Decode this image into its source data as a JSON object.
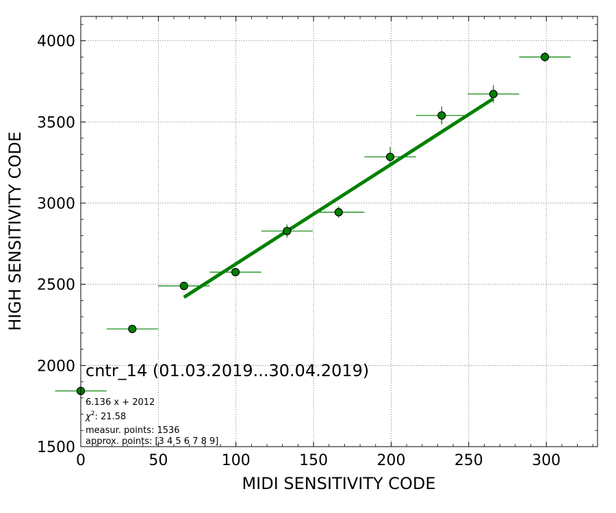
{
  "chart_data": {
    "type": "scatter",
    "title": "",
    "xlabel": "MIDI SENSITIVITY CODE",
    "ylabel": "HIGH SENSITIVITY CODE",
    "xlim": [
      0,
      333
    ],
    "ylim": [
      1500,
      4150
    ],
    "xticks": [
      0,
      50,
      100,
      150,
      200,
      250,
      300
    ],
    "yticks": [
      1500,
      2000,
      2500,
      3000,
      3500,
      4000
    ],
    "grid": true,
    "points": [
      {
        "x": 0,
        "y": 1843,
        "xerr": 16.6,
        "yerr": 10
      },
      {
        "x": 33.2,
        "y": 2225,
        "xerr": 16.6,
        "yerr": 10
      },
      {
        "x": 66.5,
        "y": 2490,
        "xerr": 16.6,
        "yerr": 15
      },
      {
        "x": 99.7,
        "y": 2575,
        "xerr": 16.6,
        "yerr": 15
      },
      {
        "x": 132.9,
        "y": 2828,
        "xerr": 16.6,
        "yerr": 40
      },
      {
        "x": 166.2,
        "y": 2944,
        "xerr": 16.6,
        "yerr": 35
      },
      {
        "x": 199.4,
        "y": 3285,
        "xerr": 16.6,
        "yerr": 60
      },
      {
        "x": 232.6,
        "y": 3540,
        "xerr": 16.6,
        "yerr": 55
      },
      {
        "x": 265.9,
        "y": 3672,
        "xerr": 16.6,
        "yerr": 55
      },
      {
        "x": 299.1,
        "y": 3900,
        "xerr": 16.6,
        "yerr": 30
      }
    ],
    "fit": {
      "slope": 6.136,
      "intercept": 2012,
      "x_start": 66.5,
      "x_end": 265.9
    },
    "annotation_title": "cntr_14 (01.03.2019...30.04.2019)",
    "annotations": [
      "6.136 x + 2012",
      "measur. points: 1536",
      "approx. points: [3 4 5 6 7 8 9]"
    ],
    "chi2_label": "χ",
    "chi2_exp": "2",
    "chi2_value": ": 21.58",
    "colors": {
      "marker": "#008000",
      "marker_edge": "#000000",
      "errorbar": "#008000",
      "fit_line": "#008000",
      "grid": "#808080"
    }
  }
}
